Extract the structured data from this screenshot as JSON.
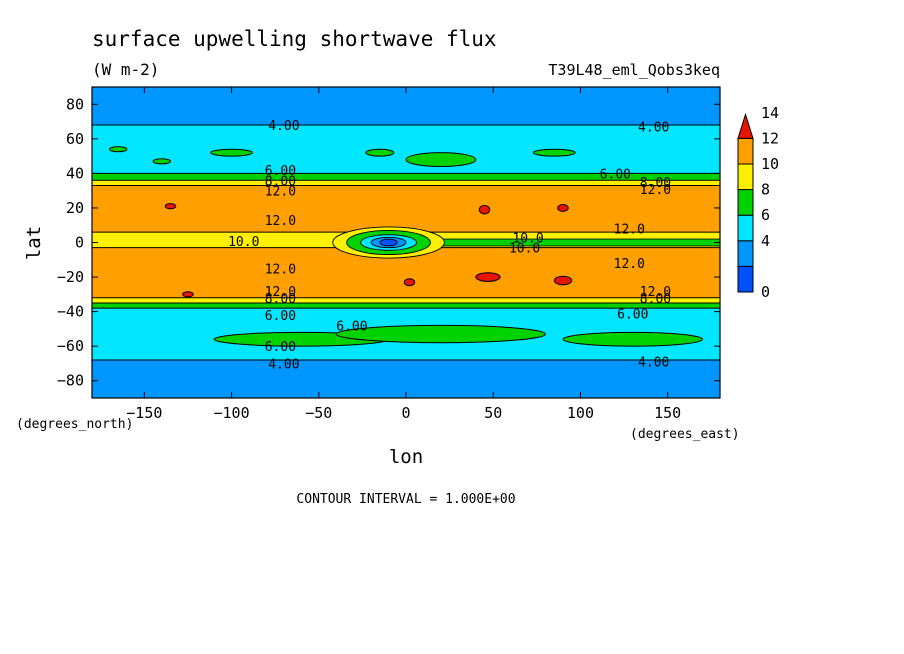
{
  "chart_data": {
    "type": "contour",
    "title": "surface upwelling shortwave flux",
    "units": "(W m-2)",
    "experiment": "T39L48_eml_Qobs3keq",
    "xlabel": "lon",
    "ylabel": "lat",
    "x_units": "(degrees_east)",
    "y_units": "(degrees_north)",
    "xlim": [
      -180,
      180
    ],
    "ylim": [
      -90,
      90
    ],
    "x_ticks": [
      -150,
      -100,
      -50,
      0,
      50,
      100,
      150
    ],
    "y_ticks": [
      80,
      60,
      40,
      20,
      0,
      -20,
      -40,
      -60,
      -80
    ],
    "contour_interval_text": "CONTOUR INTERVAL = 1.000E+00",
    "colorbar": {
      "levels": [
        0,
        2,
        4,
        6,
        8,
        10,
        12,
        14
      ],
      "labels": [
        "0",
        "4",
        "6",
        "8",
        "10",
        "12",
        "14"
      ],
      "colors": [
        "#0050ff",
        "#0096ff",
        "#00e6ff",
        "#00d200",
        "#fff000",
        "#ffa000",
        "#e61400"
      ]
    },
    "zonal_bands": [
      {
        "lat_min": 68,
        "lat_max": 90,
        "value": 3
      },
      {
        "lat_min": 40,
        "lat_max": 68,
        "value": 5
      },
      {
        "lat_min": 36,
        "lat_max": 40,
        "value": 7
      },
      {
        "lat_min": 33,
        "lat_max": 36,
        "value": 9
      },
      {
        "lat_min": 6,
        "lat_max": 33,
        "value": 11
      },
      {
        "lat_min": -3,
        "lat_max": 6,
        "value": 9
      },
      {
        "lat_min": -32,
        "lat_max": -3,
        "value": 11
      },
      {
        "lat_min": -35,
        "lat_max": -32,
        "value": 9
      },
      {
        "lat_min": -38,
        "lat_max": -35,
        "value": 7
      },
      {
        "lat_min": -68,
        "lat_max": -38,
        "value": 5
      },
      {
        "lat_min": -90,
        "lat_max": -68,
        "value": 3
      }
    ],
    "contour_labels": [
      {
        "text": "4.00",
        "lon": -70,
        "lat": 68
      },
      {
        "text": "4.00",
        "lon": 142,
        "lat": 67
      },
      {
        "text": "6.00",
        "lon": -72,
        "lat": 42
      },
      {
        "text": "6.00",
        "lon": 120,
        "lat": 40
      },
      {
        "text": "8.00",
        "lon": -72,
        "lat": 36
      },
      {
        "text": "8.00",
        "lon": 143,
        "lat": 35
      },
      {
        "text": "12.0",
        "lon": -72,
        "lat": 30
      },
      {
        "text": "12.0",
        "lon": 143,
        "lat": 31
      },
      {
        "text": "12.0",
        "lon": -72,
        "lat": 13
      },
      {
        "text": "12.0",
        "lon": 128,
        "lat": 8
      },
      {
        "text": "10.0",
        "lon": -93,
        "lat": 1
      },
      {
        "text": "10.0",
        "lon": 70,
        "lat": 3
      },
      {
        "text": "10.0",
        "lon": 68,
        "lat": -3
      },
      {
        "text": "12.0",
        "lon": -72,
        "lat": -15
      },
      {
        "text": "12.0",
        "lon": 128,
        "lat": -12
      },
      {
        "text": "12.0",
        "lon": -72,
        "lat": -28
      },
      {
        "text": "12.0",
        "lon": 143,
        "lat": -28
      },
      {
        "text": "8.00",
        "lon": -72,
        "lat": -32
      },
      {
        "text": "8.00",
        "lon": 143,
        "lat": -32
      },
      {
        "text": "6.00",
        "lon": -72,
        "lat": -42
      },
      {
        "text": "6.00",
        "lon": 130,
        "lat": -41
      },
      {
        "text": "6.00",
        "lon": -31,
        "lat": -48
      },
      {
        "text": "6.00",
        "lon": -72,
        "lat": -60
      },
      {
        "text": "4.00",
        "lon": -70,
        "lat": -70
      },
      {
        "text": "4.00",
        "lon": 142,
        "lat": -69
      }
    ],
    "anomalies": [
      {
        "value": 7,
        "lon": -165,
        "lat": 54,
        "rx": 5,
        "ry": 1.5
      },
      {
        "value": 7,
        "lon": -100,
        "lat": 52,
        "rx": 12,
        "ry": 2
      },
      {
        "value": 7,
        "lon": -15,
        "lat": 52,
        "rx": 8,
        "ry": 2
      },
      {
        "value": 7,
        "lon": 20,
        "lat": 48,
        "rx": 20,
        "ry": 4
      },
      {
        "value": 7,
        "lon": 85,
        "lat": 52,
        "rx": 12,
        "ry": 2
      },
      {
        "value": 7,
        "lon": -140,
        "lat": 47,
        "rx": 5,
        "ry": 1.5
      },
      {
        "value": 7,
        "lon": -60,
        "lat": -56,
        "rx": 50,
        "ry": 4
      },
      {
        "value": 7,
        "lon": 20,
        "lat": -53,
        "rx": 60,
        "ry": 5
      },
      {
        "value": 7,
        "lon": 130,
        "lat": -56,
        "rx": 40,
        "ry": 4
      },
      {
        "value": 13,
        "lon": -135,
        "lat": 21,
        "rx": 3,
        "ry": 1.5
      },
      {
        "value": 13,
        "lon": 45,
        "lat": 19,
        "rx": 3,
        "ry": 2.5
      },
      {
        "value": 13,
        "lon": 90,
        "lat": 20,
        "rx": 3,
        "ry": 2
      },
      {
        "value": 13,
        "lon": 47,
        "lat": -20,
        "rx": 7,
        "ry": 2.5
      },
      {
        "value": 13,
        "lon": 90,
        "lat": -22,
        "rx": 5,
        "ry": 2.5
      },
      {
        "value": 13,
        "lon": 2,
        "lat": -23,
        "rx": 3,
        "ry": 2
      },
      {
        "value": 13,
        "lon": -125,
        "lat": -30,
        "rx": 3,
        "ry": 1.5
      }
    ],
    "equatorial_feature": {
      "lon": -10,
      "lat": 0,
      "rings": [
        {
          "value": 9,
          "rx": 32,
          "ry": 9
        },
        {
          "value": 7,
          "rx": 24,
          "ry": 7
        },
        {
          "value": 5,
          "rx": 16,
          "ry": 4.5
        },
        {
          "value": 3,
          "rx": 10,
          "ry": 3
        },
        {
          "value": 1,
          "rx": 5,
          "ry": 2
        }
      ],
      "tongue": {
        "value": 7,
        "lon_min": 5,
        "lon_max": 180,
        "lat_min": -2,
        "lat_max": 2
      }
    }
  }
}
